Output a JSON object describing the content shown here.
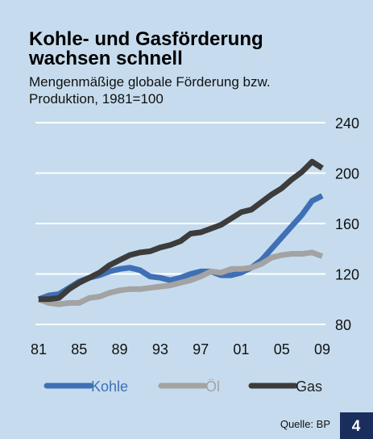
{
  "chart_data": {
    "type": "line",
    "title": "Kohle- und Gasförderung wachsen schnell",
    "subtitle": "Mengenmäßige globale Förderung bzw. Produktion, 1981=100",
    "categories": [
      "81",
      null,
      null,
      null,
      "85",
      null,
      null,
      null,
      "89",
      null,
      null,
      null,
      "93",
      null,
      null,
      null,
      "97",
      null,
      null,
      null,
      "01",
      null,
      null,
      null,
      "05",
      null,
      null,
      null,
      "09"
    ],
    "series": [
      {
        "name": "Kohle",
        "color": "#3f6fb5",
        "values": [
          100,
          103,
          104,
          109,
          114,
          117,
          119,
          122,
          124,
          125,
          123,
          118,
          117,
          115,
          117,
          120,
          122,
          122,
          119,
          119,
          121,
          125,
          131,
          140,
          149,
          158,
          167,
          178,
          182
        ]
      },
      {
        "name": "Öl",
        "color": "#a3a3a3",
        "values": [
          100,
          97,
          96,
          97,
          97,
          101,
          102,
          105,
          107,
          108,
          108,
          109,
          110,
          111,
          113,
          115,
          118,
          122,
          121,
          124,
          124,
          125,
          128,
          133,
          135,
          136,
          136,
          137,
          134
        ]
      },
      {
        "name": "Gas",
        "color": "#3c3c3c",
        "values": [
          100,
          100,
          101,
          108,
          113,
          117,
          121,
          127,
          131,
          135,
          137,
          138,
          141,
          143,
          146,
          152,
          153,
          156,
          159,
          164,
          169,
          171,
          177,
          183,
          188,
          195,
          201,
          209,
          204
        ]
      }
    ],
    "ylim": [
      80,
      240
    ],
    "yticks": [
      80,
      120,
      160,
      200,
      240
    ],
    "grid": true,
    "source": "Quelle: BP",
    "page_number": "4"
  }
}
